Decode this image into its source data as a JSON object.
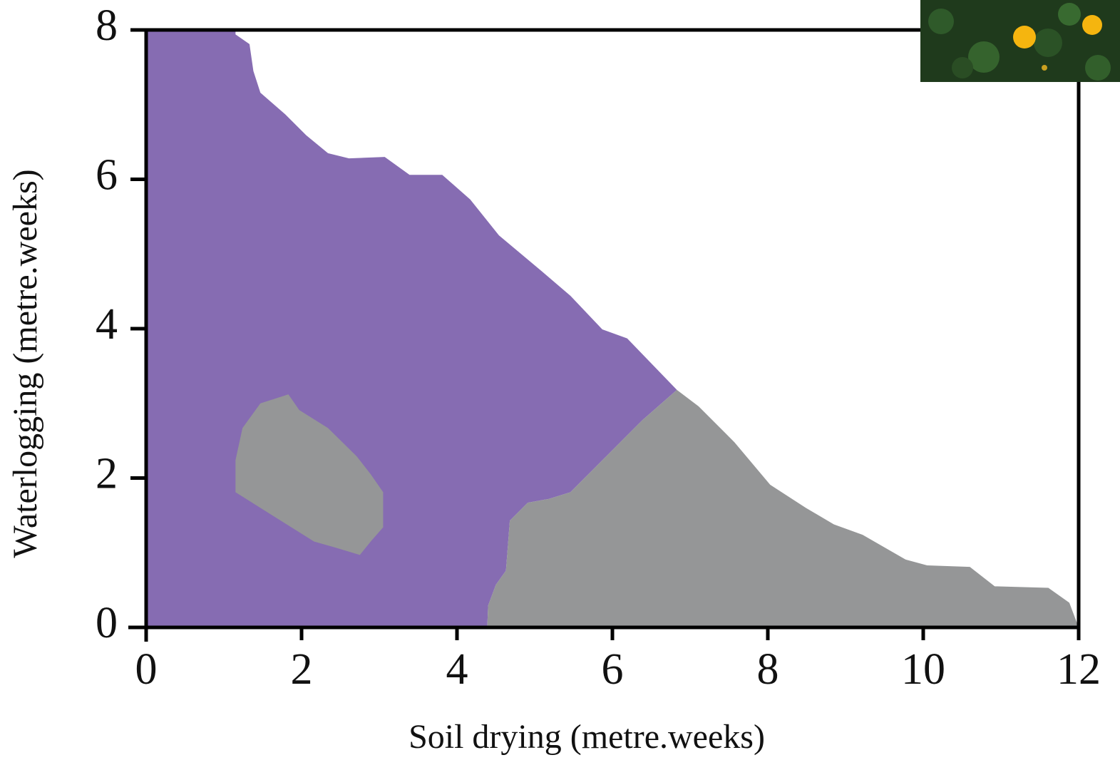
{
  "chart_data": {
    "type": "region",
    "xlabel": "Soil drying (metre.weeks)",
    "ylabel": "Waterlogging (metre.weeks)",
    "xlim": [
      0,
      12
    ],
    "xticks": [
      0,
      2,
      4,
      6,
      8,
      10,
      12
    ],
    "ylim": [
      0,
      8
    ],
    "yticks": [
      0,
      2,
      4,
      6,
      8
    ],
    "series": [
      {
        "color": "#866cb2",
        "x": [
          0,
          0,
          1.15,
          1.15,
          1.33,
          1.38,
          1.47,
          1.79,
          2.06,
          2.34,
          2.61,
          3.07,
          3.39,
          3.81,
          4.17,
          4.54,
          5.09,
          5.46,
          5.87,
          6.19,
          6.83,
          6.38,
          5.92,
          5.46,
          5.18,
          4.91,
          4.68,
          4.63,
          4.5,
          4.4,
          4.39
        ],
        "y": [
          0,
          8,
          8,
          7.94,
          7.81,
          7.45,
          7.16,
          6.87,
          6.59,
          6.35,
          6.28,
          6.3,
          6.06,
          6.06,
          5.73,
          5.25,
          4.77,
          4.44,
          3.99,
          3.87,
          3.18,
          2.77,
          2.29,
          1.81,
          1.72,
          1.67,
          1.43,
          0.76,
          0.57,
          0.29,
          0
        ]
      },
      {
        "color": "#959697",
        "x": [
          4.39,
          4.4,
          4.5,
          4.63,
          4.68,
          4.91,
          5.18,
          5.46,
          5.92,
          6.38,
          6.83,
          7.11,
          7.57,
          8.03,
          8.49,
          8.85,
          9.22,
          9.77,
          10.05,
          10.6,
          10.92,
          11.61,
          11.88,
          12
        ],
        "y": [
          0,
          0.29,
          0.57,
          0.76,
          1.43,
          1.67,
          1.72,
          1.81,
          2.29,
          2.77,
          3.18,
          2.96,
          2.48,
          1.91,
          1.6,
          1.38,
          1.24,
          0.91,
          0.83,
          0.81,
          0.55,
          0.53,
          0.33,
          0
        ]
      },
      {
        "color": "#959697",
        "x": [
          1.15,
          1.24,
          1.47,
          1.83,
          1.97,
          2.34,
          2.71,
          2.89,
          3.05,
          3.05,
          2.89,
          2.75,
          2.43,
          2.16,
          1.15
        ],
        "y": [
          2.24,
          2.67,
          3.0,
          3.12,
          2.91,
          2.67,
          2.29,
          2.05,
          1.81,
          1.34,
          1.15,
          0.97,
          1.07,
          1.15,
          1.81
        ]
      }
    ]
  }
}
